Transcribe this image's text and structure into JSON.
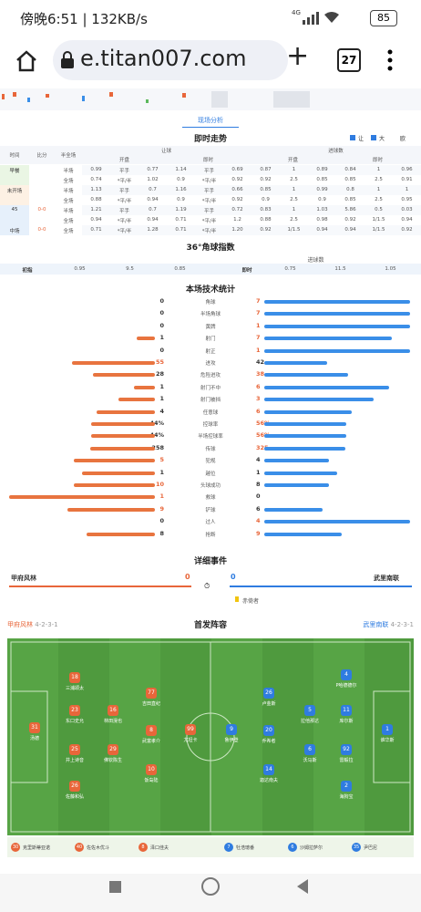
{
  "status": {
    "time": "傍晚6:51 | 132KB/s",
    "net": "4G",
    "battery": "85"
  },
  "browser": {
    "url": "e.titan007.com",
    "tabs": "27"
  },
  "tab": "现场分析",
  "trend": {
    "title": "即时走势",
    "options": [
      "让",
      "大",
      "欧"
    ],
    "headers": {
      "time": "时间",
      "score": "比分",
      "half": "半全场",
      "handicap": "让球",
      "goals": "进球数",
      "open": "开盘",
      "live": "即时"
    },
    "rows": [
      {
        "time": "早餐",
        "period": "半场",
        "cells": [
          "0.99",
          "平手",
          "0.77",
          "1.14",
          "平手",
          "0.69",
          "0.87",
          "1",
          "0.89",
          "0.84",
          "1",
          "0.96"
        ]
      },
      {
        "period": "全场",
        "cells": [
          "0.74",
          "*平/半",
          "1.02",
          "0.9",
          "*平/半",
          "0.92",
          "0.92",
          "2.5",
          "0.85",
          "0.85",
          "2.5",
          "0.91"
        ]
      },
      {
        "time": "未开场",
        "period": "半场",
        "cells": [
          "1.13",
          "平手",
          "0.7",
          "1.16",
          "平手",
          "0.66",
          "0.85",
          "1",
          "0.99",
          "0.8",
          "1",
          "1"
        ]
      },
      {
        "period": "全场",
        "cells": [
          "0.88",
          "*平/半",
          "0.94",
          "0.9",
          "*平/半",
          "0.92",
          "0.9",
          "2.5",
          "0.9",
          "0.85",
          "2.5",
          "0.95"
        ]
      },
      {
        "time": "45",
        "score": "0-0",
        "period": "半场",
        "cells": [
          "1.21",
          "平手",
          "0.7",
          "1.19",
          "平手",
          "0.72",
          "0.83",
          "1",
          "1.03",
          "5.86",
          "0.5",
          "0.03"
        ]
      },
      {
        "period": "全场",
        "cells": [
          "0.94",
          "*平/半",
          "0.94",
          "0.71",
          "*平/半",
          "1.2",
          "0.88",
          "2.5",
          "0.98",
          "0.92",
          "1/1.5",
          "0.94"
        ]
      },
      {
        "time": "中场",
        "score": "0-0",
        "period": "全场",
        "cells": [
          "0.71",
          "*平/半",
          "1.28",
          "0.71",
          "*平/半",
          "1.20",
          "0.92",
          "1/1.5",
          "0.94",
          "0.94",
          "1/1.5",
          "0.92"
        ]
      }
    ]
  },
  "corner": {
    "title": "36°角球指数",
    "sub": "进球数",
    "rows": [
      {
        "label": "初指",
        "cells": [
          "0.95",
          "9.5",
          "0.85"
        ]
      },
      {
        "label": "即时",
        "cells": [
          "0.75",
          "11.5",
          "1.05"
        ]
      }
    ]
  },
  "stats": {
    "title": "本场技术统计",
    "rows": [
      {
        "label": "角球",
        "home": 0,
        "away": 7
      },
      {
        "label": "半场角球",
        "home": 0,
        "away": 7
      },
      {
        "label": "黄牌",
        "home": 0,
        "away": 1
      },
      {
        "label": "射门",
        "home": 1,
        "away": 7
      },
      {
        "label": "射正",
        "home": 0,
        "away": 1
      },
      {
        "label": "进攻",
        "home": 55,
        "away": 42
      },
      {
        "label": "危险进攻",
        "home": 28,
        "away": 38
      },
      {
        "label": "射门不中",
        "home": 1,
        "away": 6
      },
      {
        "label": "射门被挡",
        "home": 1,
        "away": 3
      },
      {
        "label": "任意球",
        "home": 4,
        "away": 6
      },
      {
        "label": "控球率",
        "home": 44,
        "home_label": "44%",
        "away": 56,
        "away_label": "56%"
      },
      {
        "label": "半场控球率",
        "home": 44,
        "home_label": "44%",
        "away": 56,
        "away_label": "56%"
      },
      {
        "label": "传球",
        "home": 258,
        "away": 325
      },
      {
        "label": "犯规",
        "home": 5,
        "away": 4
      },
      {
        "label": "越位",
        "home": 1,
        "away": 1
      },
      {
        "label": "头球成功",
        "home": 10,
        "away": 8
      },
      {
        "label": "救球",
        "home": 1,
        "away": 0
      },
      {
        "label": "铲球",
        "home": 9,
        "away": 6
      },
      {
        "label": "过人",
        "home": 0,
        "away": 4
      },
      {
        "label": "抢断",
        "home": 8,
        "away": 9
      }
    ]
  },
  "events": {
    "title": "详细事件",
    "home": "甲府风林",
    "away": "武里南联",
    "home_score": 0,
    "away_score": 0,
    "event": "赤倚者"
  },
  "lineup": {
    "title": "首发阵容",
    "home": {
      "name": "甲府风林",
      "formation": "4-2-3-1",
      "players": [
        {
          "num": 31,
          "name": "汤德"
        },
        {
          "num": 18,
          "name": "三浦颂太"
        },
        {
          "num": 23,
          "name": "东口史允"
        },
        {
          "num": 25,
          "name": "井上诗音"
        },
        {
          "num": 26,
          "name": "佐藤和弘"
        },
        {
          "num": 16,
          "name": "林田滉也"
        },
        {
          "num": 29,
          "name": "佛钦陈生"
        },
        {
          "num": 77,
          "name": "吉田直纪"
        },
        {
          "num": 8,
          "name": "武富孝介"
        },
        {
          "num": 10,
          "name": "饭岛陆"
        },
        {
          "num": 99,
          "name": "尤坦卡"
        }
      ],
      "subs": [
        {
          "num": 30,
          "name": "克里斯蒂亚诺"
        },
        {
          "num": 40,
          "name": "佐佐木优斗"
        },
        {
          "num": 8,
          "name": "泽口佳夫"
        }
      ]
    },
    "away": {
      "name": "武里南联",
      "formation": "4-2-3-1",
      "players": [
        {
          "num": 9,
          "name": "鲁伊登"
        },
        {
          "num": 26,
          "name": "卢金斯"
        },
        {
          "num": 20,
          "name": "乔希者"
        },
        {
          "num": 14,
          "name": "迦达南夫"
        },
        {
          "num": 5,
          "name": "拉他那达"
        },
        {
          "num": 6,
          "name": "沃马斯"
        },
        {
          "num": 4,
          "name": "P哈德德尔"
        },
        {
          "num": 11,
          "name": "库尔斯"
        },
        {
          "num": 92,
          "name": "雷毅拉"
        },
        {
          "num": 2,
          "name": "海狗宝"
        },
        {
          "num": 1,
          "name": "谁华斯"
        }
      ],
      "subs": [
        {
          "num": 7,
          "name": "牡浩璁番"
        },
        {
          "num": 6,
          "name": "沙姆拉萨尔"
        },
        {
          "num": 35,
          "name": "尹巴尼"
        }
      ]
    }
  }
}
